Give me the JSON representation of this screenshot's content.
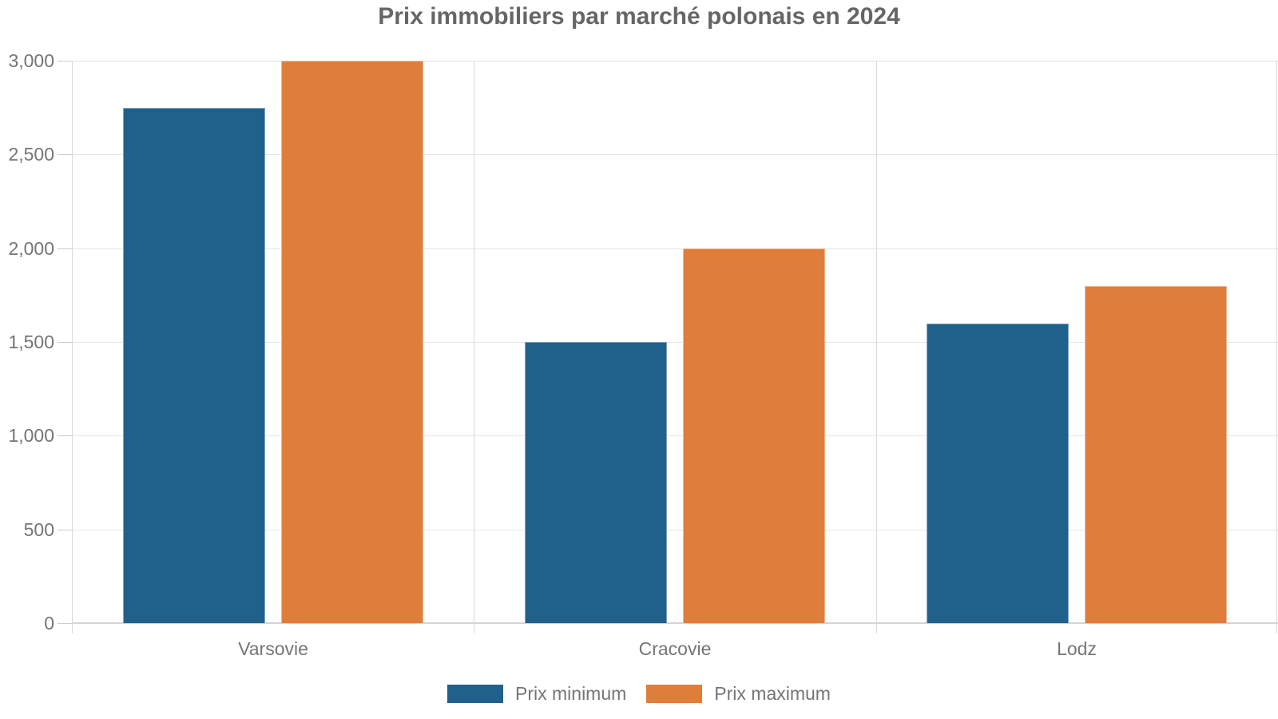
{
  "chart_data": {
    "type": "bar",
    "title": "Prix immobiliers par marché polonais en 2024",
    "categories": [
      "Varsovie",
      "Cracovie",
      "Lodz"
    ],
    "series": [
      {
        "name": "Prix minimum",
        "color": "#20618C",
        "values": [
          2750,
          1500,
          1600
        ]
      },
      {
        "name": "Prix maximum",
        "color": "#DF7E3B",
        "values": [
          3000,
          2000,
          1800
        ]
      }
    ],
    "ylim": [
      0,
      3000
    ],
    "yticks": [
      0,
      500,
      1000,
      1500,
      2000,
      2500,
      3000
    ],
    "ytick_labels": [
      "0",
      "500",
      "1,000",
      "1,500",
      "2,000",
      "2,500",
      "3,000"
    ],
    "xlabel": "",
    "ylabel": "",
    "grid": true,
    "legend_position": "bottom"
  },
  "colors": {
    "background": "#ffffff",
    "title_text": "#666666",
    "axis_text": "#757575",
    "gridline": "#e6e6e6",
    "axis_line": "#d9d9d9",
    "tick": "#cccccc",
    "baseline": "#d4d4d4",
    "prix_minimum": "#20618C",
    "prix_maximum": "#DF7E3B"
  }
}
